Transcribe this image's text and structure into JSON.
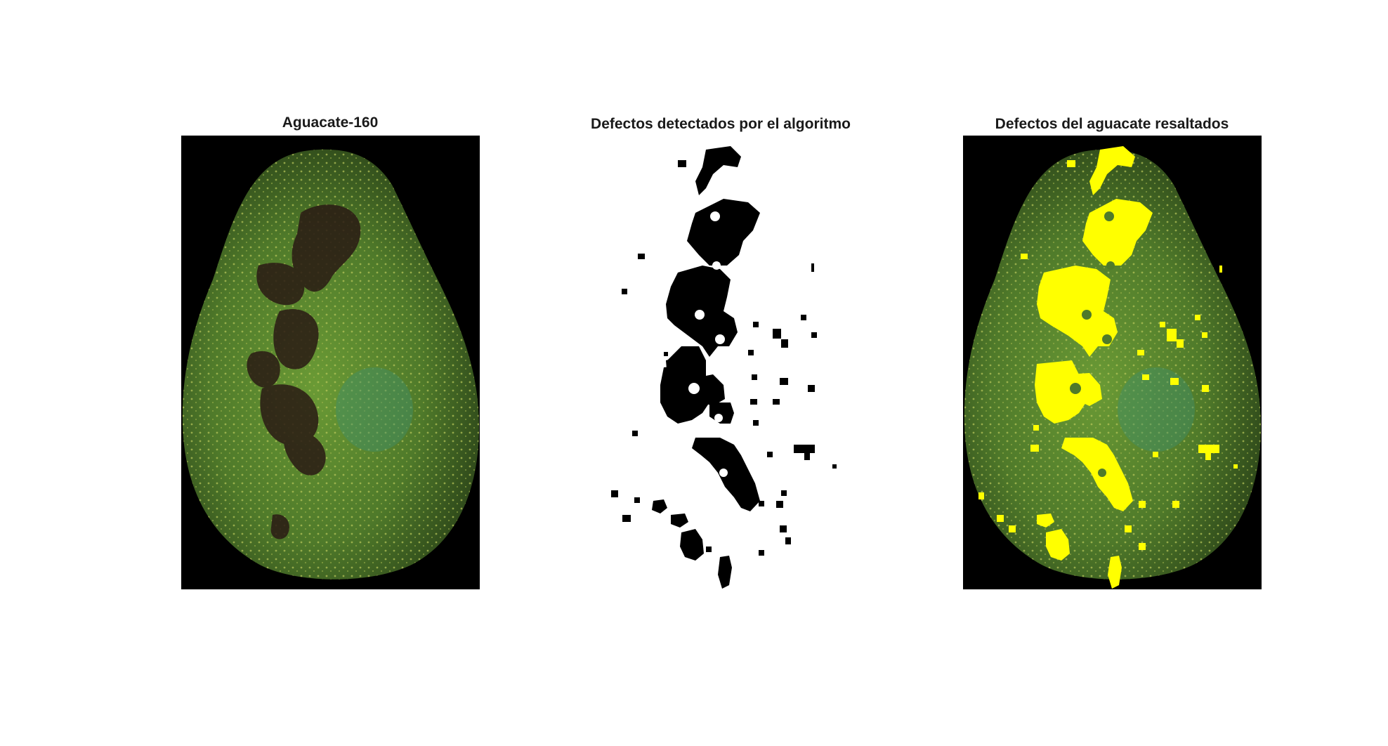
{
  "panels": [
    {
      "title": "Aguacate-160",
      "image": "avocado-photo"
    },
    {
      "title": "Defectos detectados por el algoritmo",
      "image": "binary-defect-mask"
    },
    {
      "title": "Defectos del aguacate resaltados",
      "image": "avocado-photo-with-highlighted-defects"
    }
  ],
  "colors": {
    "background": "#000000",
    "avocado_skin": "#4f7a2a",
    "defect_dark": "#2a1a14",
    "highlight": "#ffff00",
    "mask": "#000000"
  }
}
